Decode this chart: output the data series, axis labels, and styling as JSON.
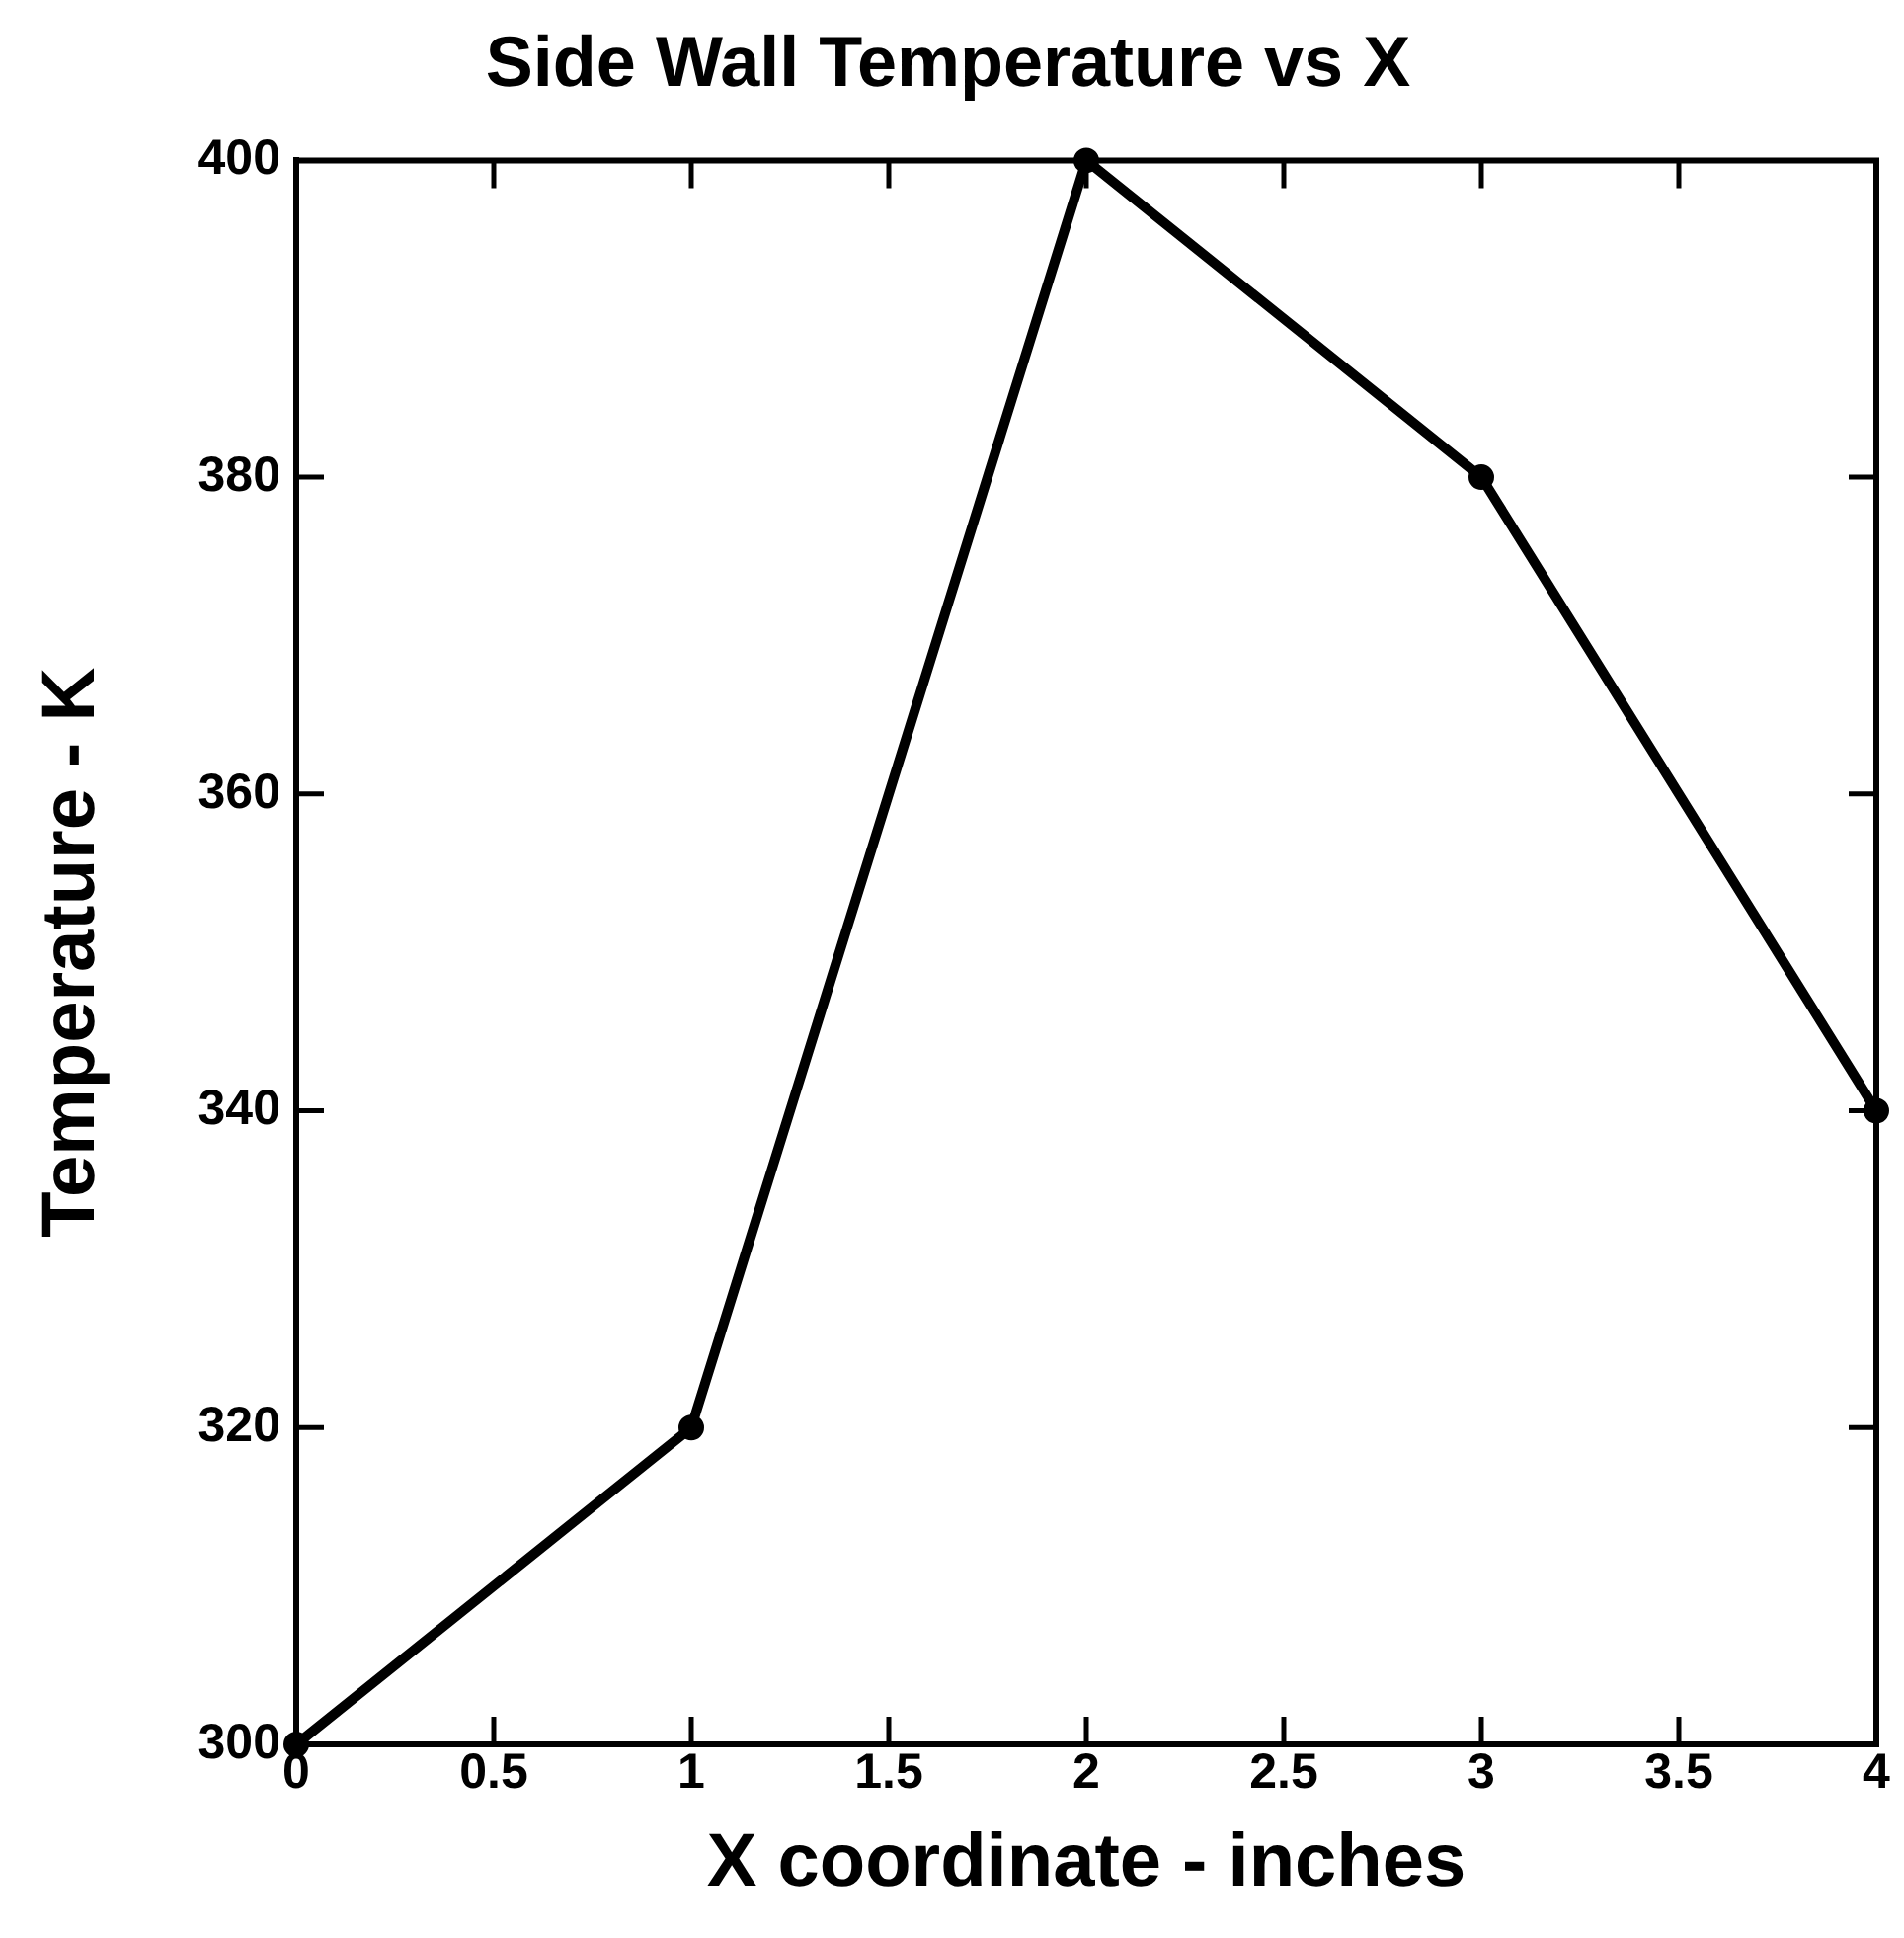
{
  "chart_data": {
    "type": "line",
    "title": "Side Wall Temperature vs X",
    "xlabel": "X coordinate - inches",
    "ylabel": "Temperature - K",
    "x": [
      0,
      1,
      2,
      3,
      4
    ],
    "series": [
      {
        "color": "#000000",
        "values": [
          300,
          320,
          400,
          380,
          340
        ]
      }
    ],
    "xlim": [
      0,
      4
    ],
    "xticks": [
      0,
      0.5,
      1,
      1.5,
      2,
      2.5,
      3,
      3.5,
      4
    ],
    "ylim": [
      300,
      400
    ],
    "yticks": [
      300,
      320,
      340,
      360,
      380,
      400
    ],
    "grid": false,
    "legend": false,
    "marker": "circle",
    "line_style": "solid"
  }
}
